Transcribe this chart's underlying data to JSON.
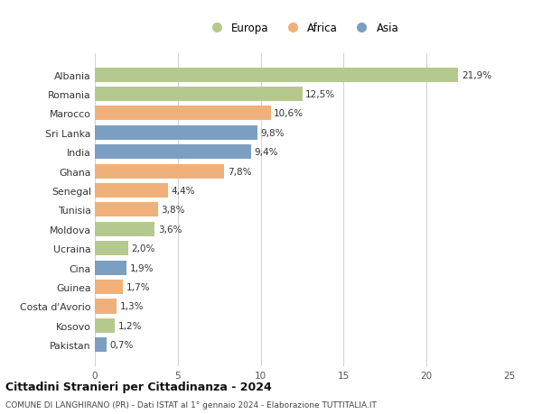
{
  "categories": [
    "Albania",
    "Romania",
    "Marocco",
    "Sri Lanka",
    "India",
    "Ghana",
    "Senegal",
    "Tunisia",
    "Moldova",
    "Ucraina",
    "Cina",
    "Guinea",
    "Costa d'Avorio",
    "Kosovo",
    "Pakistan"
  ],
  "values": [
    21.9,
    12.5,
    10.6,
    9.8,
    9.4,
    7.8,
    4.4,
    3.8,
    3.6,
    2.0,
    1.9,
    1.7,
    1.3,
    1.2,
    0.7
  ],
  "labels": [
    "21,9%",
    "12,5%",
    "10,6%",
    "9,8%",
    "9,4%",
    "7,8%",
    "4,4%",
    "3,8%",
    "3,6%",
    "2,0%",
    "1,9%",
    "1,7%",
    "1,3%",
    "1,2%",
    "0,7%"
  ],
  "colors": [
    "#b5c98e",
    "#b5c98e",
    "#f0b07a",
    "#7a9fc2",
    "#7a9fc2",
    "#f0b07a",
    "#f0b07a",
    "#f0b07a",
    "#b5c98e",
    "#b5c98e",
    "#7a9fc2",
    "#f0b07a",
    "#f0b07a",
    "#b5c98e",
    "#7a9fc2"
  ],
  "legend_labels": [
    "Europa",
    "Africa",
    "Asia"
  ],
  "legend_colors": [
    "#b5c98e",
    "#f0b07a",
    "#7a9fc2"
  ],
  "title": "Cittadini Stranieri per Cittadinanza - 2024",
  "subtitle": "COMUNE DI LANGHIRANO (PR) - Dati ISTAT al 1° gennaio 2024 - Elaborazione TUTTITALIA.IT",
  "xlim": [
    0,
    25
  ],
  "xticks": [
    0,
    5,
    10,
    15,
    20,
    25
  ],
  "background_color": "#ffffff",
  "grid_color": "#d0d0d0",
  "bar_height": 0.75
}
